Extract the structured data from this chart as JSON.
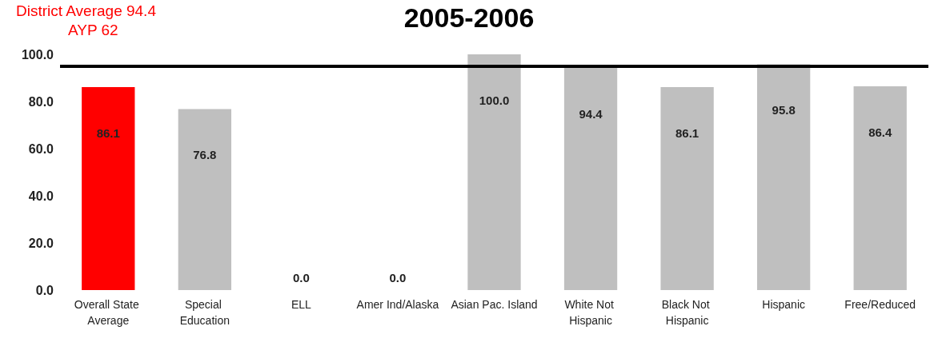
{
  "chart_data": {
    "type": "bar",
    "title": "2005-2006",
    "categories": [
      "Overall State Average",
      "Special Education",
      "ELL",
      "Amer Ind/Alaska",
      "Asian Pac. Island",
      "White Not Hispanic",
      "Black Not Hispanic",
      "Hispanic",
      "Free/Reduced"
    ],
    "values": [
      86.1,
      76.8,
      0,
      0,
      100,
      94.4,
      86.1,
      95.8,
      86.4
    ],
    "colors": [
      "#ff0000",
      "#bfbfbf",
      "#bfbfbf",
      "#bfbfbf",
      "#bfbfbf",
      "#bfbfbf",
      "#bfbfbf",
      "#bfbfbf",
      "#bfbfbf"
    ],
    "value_labels": [
      "86.1",
      "76.8",
      "0.0",
      "0.0",
      "100.0",
      "94.4",
      "86.1",
      "95.8",
      "86.4"
    ],
    "ylim": [
      0,
      100
    ],
    "yticks": [
      {
        "value": 0,
        "label": "0.0"
      },
      {
        "value": 20,
        "label": "20.0"
      },
      {
        "value": 40,
        "label": "40.0"
      },
      {
        "value": 60,
        "label": "60.0"
      },
      {
        "value": 80,
        "label": "80.0"
      },
      {
        "value": 100,
        "label": "100.0"
      }
    ],
    "ref_lines": [
      {
        "axis": "y",
        "value": 95,
        "color": "#000000"
      }
    ],
    "annotations": [
      "District Average 94.4",
      "AYP 62"
    ],
    "grid": false
  }
}
